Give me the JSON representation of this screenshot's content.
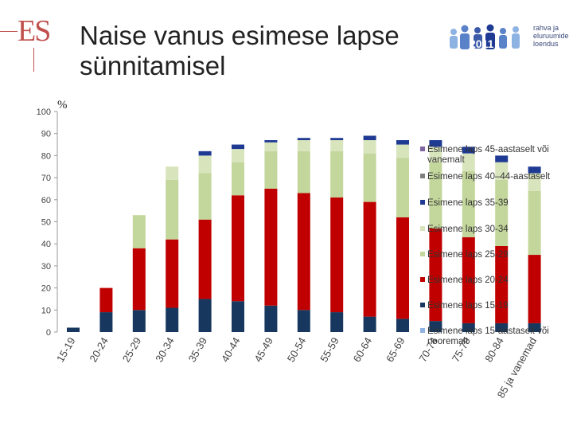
{
  "header": {
    "logo_text": "ES",
    "title": "Naise vanus esimese lapse sünnitamisel",
    "brand_lines": [
      "rahva ja",
      "eluruumide",
      "loendus"
    ],
    "brand_mark": "2011"
  },
  "chart_data": {
    "type": "bar",
    "stacked": true,
    "ylabel": "%",
    "ylim": [
      0,
      100
    ],
    "yticks": [
      0,
      10,
      20,
      30,
      40,
      50,
      60,
      70,
      80,
      90,
      100
    ],
    "grid": false,
    "legend_position": "right",
    "categories": [
      "15-19",
      "20-24",
      "25-29",
      "30-34",
      "35-39",
      "40-44",
      "45-49",
      "50-54",
      "55-59",
      "60-64",
      "65-69",
      "70-74",
      "75-79",
      "80-84",
      "85 ja vanemad"
    ],
    "series": [
      {
        "name": "Esimene laps 15-aastaselt või nooremalt",
        "color": "#8db3e2",
        "values": [
          0,
          0,
          0,
          0,
          0,
          0,
          0,
          0,
          0,
          0,
          0,
          0,
          0,
          0,
          0
        ]
      },
      {
        "name": "Esimene laps 15-19",
        "color": "#17375e",
        "values": [
          2,
          9,
          10,
          11,
          15,
          14,
          12,
          10,
          9,
          7,
          6,
          5,
          4,
          4,
          4
        ]
      },
      {
        "name": "Esimene laps 20-24",
        "color": "#c00000",
        "values": [
          0,
          11,
          28,
          31,
          36,
          48,
          53,
          53,
          52,
          52,
          46,
          42,
          39,
          35,
          31
        ]
      },
      {
        "name": "Esimene laps 25-29",
        "color": "#c3d69b",
        "values": [
          0,
          0,
          15,
          27,
          21,
          15,
          17,
          19,
          21,
          22,
          27,
          30,
          30,
          30,
          29
        ]
      },
      {
        "name": "Esimene laps 30-34",
        "color": "#d8e4bc",
        "values": [
          0,
          0,
          0,
          6,
          8,
          6,
          4,
          5,
          5,
          6,
          6,
          7,
          8,
          8,
          8
        ]
      },
      {
        "name": "Esimene laps 35-39",
        "color": "#1f3a93",
        "values": [
          0,
          0,
          0,
          0,
          2,
          2,
          1,
          1,
          1,
          2,
          2,
          3,
          3,
          3,
          3
        ]
      },
      {
        "name": "Esimene laps 40–44-aastaselt",
        "color": "#7f7f7f",
        "values": [
          0,
          0,
          0,
          0,
          0,
          0,
          0,
          0,
          0,
          0,
          0,
          0,
          0,
          0,
          0
        ]
      },
      {
        "name": "Esimene laps 45-aastaselt või vanemalt",
        "color": "#8064a2",
        "values": [
          0,
          0,
          0,
          0,
          0,
          0,
          0,
          0,
          0,
          0,
          0,
          0,
          0,
          0,
          0
        ]
      }
    ]
  }
}
